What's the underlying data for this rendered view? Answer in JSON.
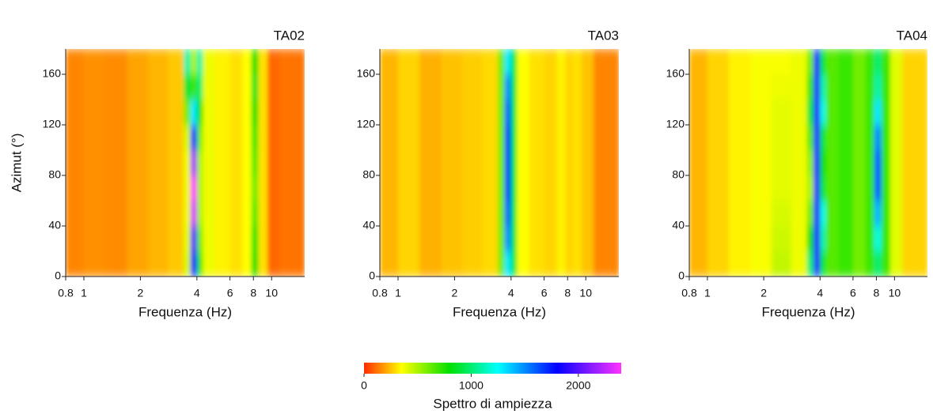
{
  "chart_data": [
    {
      "type": "heatmap",
      "title": "TA02",
      "xlabel": "Frequenza (Hz)",
      "ylabel": "Azimut (°)",
      "xscale": "log",
      "xlim": [
        0.8,
        15
      ],
      "ylim": [
        0,
        180
      ],
      "xticks": [
        0.8,
        1,
        2,
        4,
        6,
        8,
        10
      ],
      "yticks": [
        0,
        40,
        80,
        120,
        160
      ],
      "x_edges": [
        0.8,
        1,
        1.3,
        1.7,
        2.2,
        2.8,
        3.4,
        3.7,
        4.0,
        4.3,
        5,
        6,
        7,
        7.8,
        8.5,
        9.5,
        11,
        15
      ],
      "y_edges": [
        0,
        20,
        40,
        60,
        80,
        100,
        120,
        140,
        160,
        180
      ],
      "values": [
        [
          150,
          170,
          160,
          200,
          230,
          260,
          420,
          1800,
          700,
          380,
          330,
          300,
          350,
          800,
          300,
          100,
          120
        ],
        [
          150,
          170,
          160,
          200,
          230,
          260,
          400,
          2000,
          600,
          380,
          330,
          300,
          350,
          750,
          300,
          100,
          120
        ],
        [
          150,
          170,
          160,
          200,
          230,
          260,
          380,
          2300,
          500,
          380,
          330,
          300,
          350,
          650,
          300,
          100,
          120
        ],
        [
          150,
          170,
          160,
          200,
          230,
          260,
          380,
          2400,
          500,
          380,
          330,
          300,
          350,
          600,
          300,
          100,
          120
        ],
        [
          150,
          170,
          160,
          200,
          230,
          260,
          380,
          2200,
          500,
          380,
          330,
          300,
          350,
          650,
          300,
          100,
          120
        ],
        [
          150,
          170,
          160,
          200,
          230,
          260,
          420,
          1700,
          600,
          380,
          330,
          300,
          350,
          700,
          300,
          100,
          120
        ],
        [
          150,
          170,
          160,
          200,
          230,
          260,
          600,
          1300,
          800,
          380,
          330,
          300,
          350,
          800,
          300,
          100,
          120
        ],
        [
          150,
          170,
          160,
          200,
          230,
          260,
          900,
          700,
          1000,
          380,
          330,
          300,
          350,
          850,
          300,
          100,
          120
        ],
        [
          150,
          170,
          160,
          200,
          230,
          260,
          1100,
          500,
          1100,
          380,
          330,
          300,
          350,
          800,
          300,
          100,
          120
        ]
      ]
    },
    {
      "type": "heatmap",
      "title": "TA03",
      "xlabel": "Frequenza (Hz)",
      "xscale": "log",
      "xlim": [
        0.8,
        15
      ],
      "ylim": [
        0,
        180
      ],
      "xticks": [
        0.8,
        1,
        2,
        4,
        6,
        8,
        10
      ],
      "yticks": [
        0,
        40,
        80,
        120,
        160
      ],
      "x_edges": [
        0.8,
        1,
        1.3,
        1.7,
        2.2,
        2.8,
        3.4,
        3.7,
        4.0,
        4.3,
        5,
        6,
        7,
        7.8,
        8.5,
        9.5,
        11,
        15
      ],
      "y_edges": [
        0,
        20,
        40,
        60,
        80,
        100,
        120,
        140,
        160,
        180
      ],
      "values": [
        [
          230,
          280,
          220,
          250,
          270,
          290,
          600,
          1300,
          900,
          350,
          300,
          280,
          330,
          280,
          300,
          250,
          150
        ],
        [
          230,
          280,
          220,
          250,
          270,
          290,
          600,
          1500,
          900,
          350,
          300,
          280,
          330,
          280,
          300,
          250,
          150
        ],
        [
          230,
          280,
          220,
          250,
          270,
          290,
          600,
          1600,
          900,
          350,
          300,
          280,
          330,
          280,
          300,
          250,
          150
        ],
        [
          230,
          280,
          220,
          250,
          270,
          290,
          600,
          1700,
          900,
          350,
          300,
          280,
          330,
          280,
          300,
          250,
          150
        ],
        [
          230,
          280,
          220,
          250,
          270,
          290,
          600,
          1700,
          900,
          350,
          300,
          280,
          330,
          280,
          300,
          250,
          150
        ],
        [
          230,
          280,
          220,
          250,
          270,
          290,
          600,
          1700,
          900,
          350,
          300,
          280,
          330,
          280,
          300,
          250,
          150
        ],
        [
          230,
          280,
          220,
          250,
          270,
          290,
          600,
          1600,
          900,
          350,
          300,
          280,
          330,
          280,
          300,
          250,
          150
        ],
        [
          230,
          280,
          220,
          250,
          270,
          290,
          600,
          1500,
          900,
          350,
          300,
          280,
          330,
          280,
          300,
          250,
          150
        ],
        [
          230,
          280,
          220,
          250,
          270,
          290,
          600,
          1300,
          900,
          350,
          300,
          280,
          330,
          280,
          300,
          250,
          150
        ]
      ]
    },
    {
      "type": "heatmap",
      "title": "TA04",
      "xlabel": "Frequenza (Hz)",
      "xscale": "log",
      "xlim": [
        0.8,
        15
      ],
      "ylim": [
        0,
        180
      ],
      "xticks": [
        0.8,
        1,
        2,
        4,
        6,
        8,
        10
      ],
      "yticks": [
        0,
        40,
        80,
        120,
        160
      ],
      "x_edges": [
        0.8,
        1,
        1.3,
        1.7,
        2.2,
        2.8,
        3.4,
        3.7,
        4.0,
        4.3,
        5,
        6,
        7,
        7.8,
        8.5,
        9.5,
        11,
        15
      ],
      "y_edges": [
        0,
        20,
        40,
        60,
        80,
        100,
        120,
        140,
        160,
        180
      ],
      "values": [
        [
          230,
          280,
          330,
          360,
          460,
          380,
          1000,
          1900,
          900,
          650,
          700,
          600,
          700,
          1000,
          700,
          400,
          280
        ],
        [
          230,
          280,
          330,
          360,
          440,
          380,
          800,
          1900,
          1100,
          650,
          700,
          600,
          700,
          1200,
          700,
          400,
          280
        ],
        [
          230,
          280,
          330,
          360,
          420,
          380,
          600,
          1900,
          1200,
          650,
          700,
          600,
          700,
          1400,
          700,
          400,
          280
        ],
        [
          230,
          280,
          330,
          360,
          400,
          380,
          500,
          1900,
          900,
          650,
          700,
          600,
          700,
          1600,
          700,
          400,
          280
        ],
        [
          230,
          280,
          330,
          360,
          400,
          380,
          550,
          1900,
          800,
          650,
          700,
          600,
          700,
          1600,
          700,
          400,
          280
        ],
        [
          230,
          280,
          330,
          360,
          400,
          380,
          650,
          1900,
          900,
          650,
          700,
          600,
          700,
          1500,
          700,
          400,
          280
        ],
        [
          230,
          280,
          330,
          360,
          400,
          380,
          900,
          1900,
          1200,
          650,
          700,
          600,
          700,
          1300,
          700,
          400,
          280
        ],
        [
          230,
          280,
          330,
          360,
          380,
          380,
          700,
          1900,
          1100,
          650,
          700,
          600,
          700,
          1100,
          700,
          400,
          280
        ],
        [
          230,
          280,
          330,
          360,
          360,
          380,
          600,
          1900,
          900,
          650,
          700,
          600,
          700,
          1000,
          700,
          400,
          280
        ]
      ]
    }
  ],
  "colorbar": {
    "label": "Spettro di ampiezza",
    "lim": [
      0,
      2400
    ],
    "ticks": [
      0,
      1000,
      2000
    ],
    "stops": [
      {
        "value": 0,
        "color": "#ff2a00"
      },
      {
        "value": 350,
        "color": "#ffff00"
      },
      {
        "value": 800,
        "color": "#00e000"
      },
      {
        "value": 1250,
        "color": "#00ffff"
      },
      {
        "value": 1800,
        "color": "#0000ff"
      },
      {
        "value": 2400,
        "color": "#ff33ff"
      }
    ]
  }
}
